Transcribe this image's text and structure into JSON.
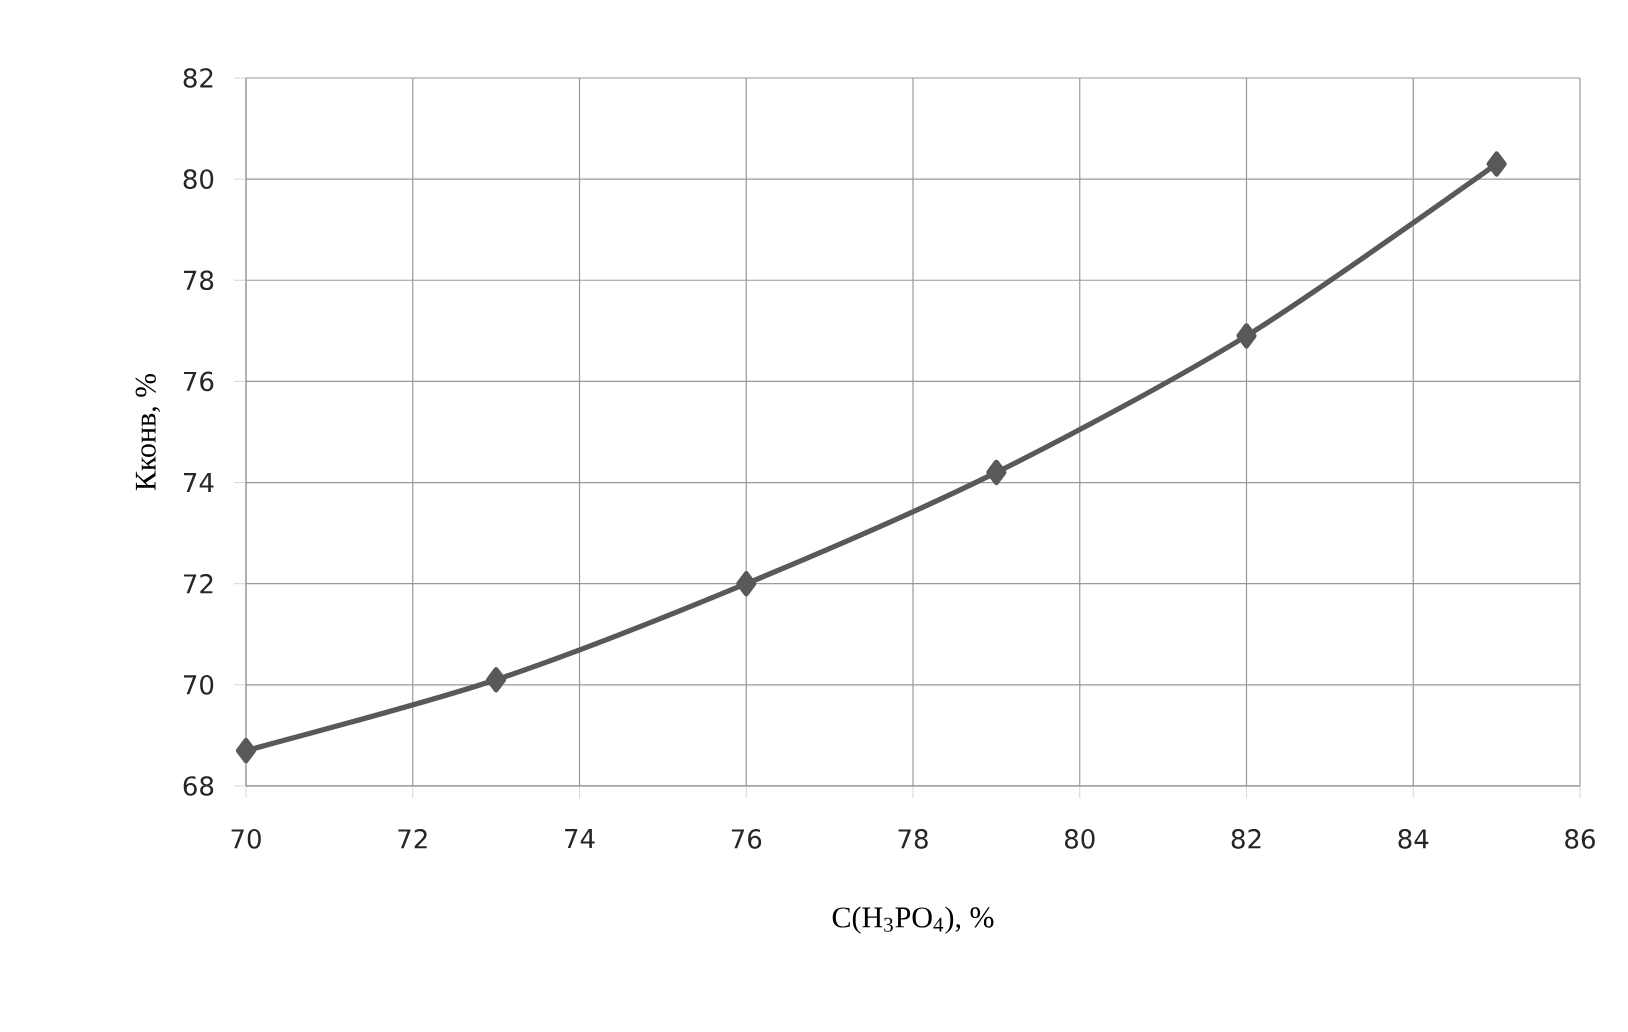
{
  "chart_data": {
    "type": "line",
    "xlabel": "C(H$_{3}$PO$_{4}$), %",
    "ylabel": "Кконв, %",
    "x": [
      70,
      73,
      76,
      79,
      82,
      85
    ],
    "values": [
      68.7,
      70.1,
      72.0,
      74.2,
      76.9,
      80.3
    ],
    "color": "#595959",
    "marker": "diamond",
    "line_style": "solid",
    "grid": true,
    "xlim": [
      70,
      86
    ],
    "xticks": [
      70,
      72,
      74,
      76,
      78,
      80,
      82,
      84,
      86
    ],
    "ylim": [
      68,
      82
    ],
    "yticks": [
      68,
      70,
      72,
      74,
      76,
      78,
      80,
      82
    ]
  }
}
